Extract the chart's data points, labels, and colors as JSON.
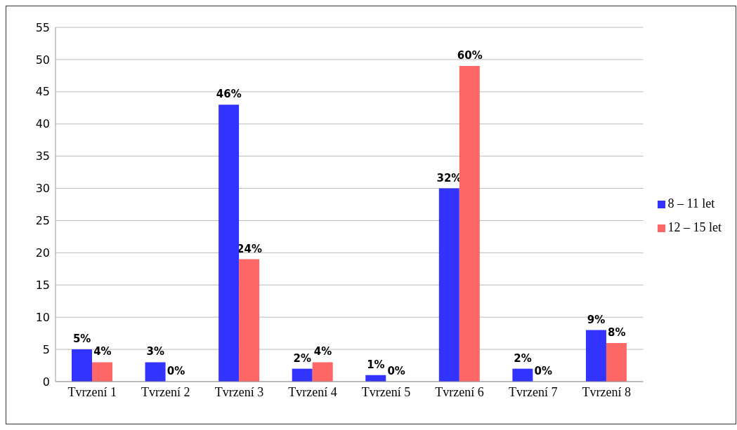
{
  "chart_data": {
    "type": "bar",
    "categories": [
      "Tvrzení  1",
      "Tvrzení  2",
      "Tvrzení  3",
      "Tvrzení  4",
      "Tvrzení  5",
      "Tvrzení  6",
      "Tvrzení  7",
      "Tvrzení  8"
    ],
    "series": [
      {
        "name": "8 – 11 let",
        "color": "#3333ff",
        "values": [
          5,
          3,
          43,
          2,
          1,
          30,
          2,
          8
        ]
      },
      {
        "name": "12 – 15 let",
        "color": "#ff6666",
        "values": [
          3,
          0,
          19,
          3,
          0,
          49,
          0,
          6
        ]
      }
    ],
    "annotations": [
      {
        "text": "5%",
        "x": "Tvrzení  1",
        "y": 5
      },
      {
        "text": "4%",
        "x": "Tvrzení  1",
        "y": 3
      },
      {
        "text": "3%",
        "x": "Tvrzení  2",
        "y": 3
      },
      {
        "text": "0%",
        "x": "Tvrzení  2",
        "y": 0
      },
      {
        "text": "46%",
        "x": "Tvrzení  3",
        "y": 43
      },
      {
        "text": "24%",
        "x": "Tvrzení  3",
        "y": 19
      },
      {
        "text": "2%",
        "x": "Tvrzení  4",
        "y": 2
      },
      {
        "text": "4%",
        "x": "Tvrzení  4",
        "y": 3
      },
      {
        "text": "1%",
        "x": "Tvrzení  5",
        "y": 1
      },
      {
        "text": "0%",
        "x": "Tvrzení  5",
        "y": 0
      },
      {
        "text": "32%",
        "x": "Tvrzení  6",
        "y": 30
      },
      {
        "text": "60%",
        "x": "Tvrzení  6",
        "y": 49
      },
      {
        "text": "2%",
        "x": "Tvrzení  7",
        "y": 2
      },
      {
        "text": "0%",
        "x": "Tvrzení  7",
        "y": 0
      },
      {
        "text": "9%",
        "x": "Tvrzení  8",
        "y": 8
      },
      {
        "text": "8%",
        "x": "Tvrzení  8",
        "y": 6
      }
    ],
    "ylim": [
      0,
      55
    ],
    "yticks": [
      0,
      5,
      10,
      15,
      20,
      25,
      30,
      35,
      40,
      45,
      50,
      55
    ],
    "grid": "y",
    "legend": "right"
  }
}
